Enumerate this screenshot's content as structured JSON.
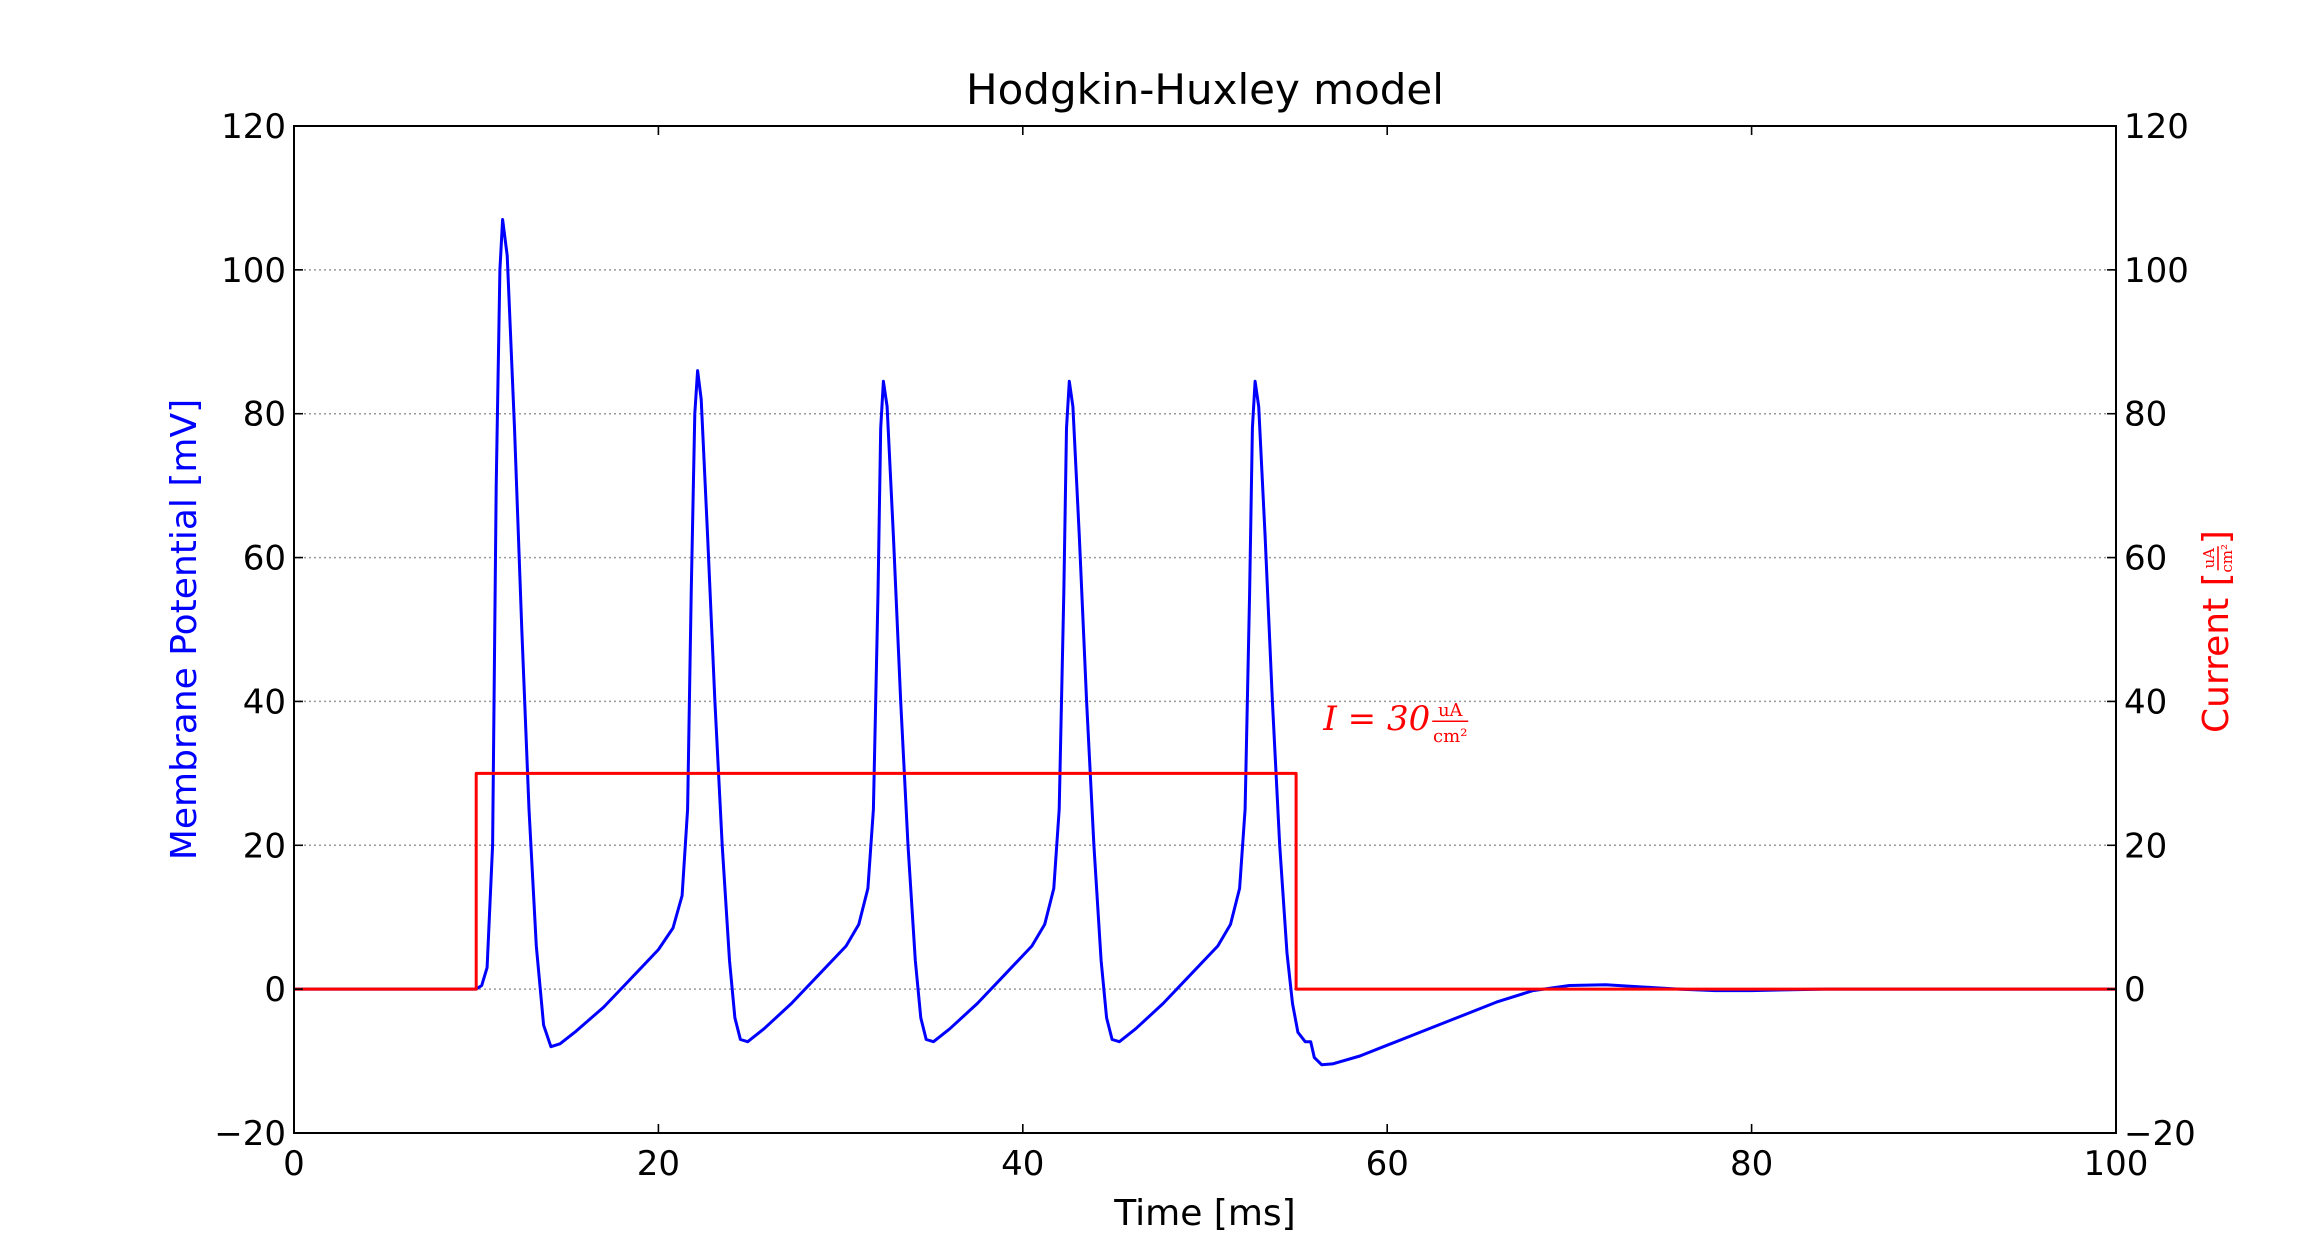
{
  "chart_data": {
    "type": "line",
    "title": "Hodgkin-Huxley model",
    "xlabel": "Time [ms]",
    "ylabel_left": "Membrane Potential [mV]",
    "ylabel_right_prefix": "Current [",
    "ylabel_right_frac_num": "uA",
    "ylabel_right_frac_den": "cm²",
    "ylabel_right_suffix": "]",
    "annotation": {
      "text_prefix": "I = 30",
      "frac_num": "uA",
      "frac_den": "cm²",
      "x": 56.5,
      "y": 36,
      "color": "#ff0000"
    },
    "xlim": [
      0,
      100
    ],
    "ylim": [
      -20,
      120
    ],
    "xticks": [
      0,
      20,
      40,
      60,
      80,
      100
    ],
    "yticks": [
      -20,
      0,
      20,
      40,
      60,
      80,
      100,
      120
    ],
    "grid": "horizontal dotted",
    "colors": {
      "membrane": "#0000ff",
      "current": "#ff0000",
      "left_label": "#0000ff",
      "right_label": "#ff0000"
    },
    "series": [
      {
        "color": "#0000ff",
        "points": [
          [
            0,
            0
          ],
          [
            10,
            0
          ],
          [
            10.3,
            0.5
          ],
          [
            10.6,
            3
          ],
          [
            10.9,
            20
          ],
          [
            11.1,
            70
          ],
          [
            11.3,
            100
          ],
          [
            11.45,
            107
          ],
          [
            11.7,
            102
          ],
          [
            12.1,
            78
          ],
          [
            12.5,
            50
          ],
          [
            12.9,
            25
          ],
          [
            13.3,
            6
          ],
          [
            13.7,
            -5
          ],
          [
            14.1,
            -8
          ],
          [
            14.6,
            -7.6
          ],
          [
            15.5,
            -5.8
          ],
          [
            17,
            -2.5
          ],
          [
            18.5,
            1.5
          ],
          [
            20,
            5.5
          ],
          [
            20.8,
            8.5
          ],
          [
            21.3,
            13
          ],
          [
            21.6,
            25
          ],
          [
            21.8,
            55
          ],
          [
            22,
            80
          ],
          [
            22.15,
            86
          ],
          [
            22.35,
            82
          ],
          [
            22.7,
            63
          ],
          [
            23.1,
            40
          ],
          [
            23.5,
            20
          ],
          [
            23.9,
            4
          ],
          [
            24.2,
            -4
          ],
          [
            24.5,
            -7
          ],
          [
            24.9,
            -7.3
          ],
          [
            25.8,
            -5.5
          ],
          [
            27.3,
            -2
          ],
          [
            28.8,
            2
          ],
          [
            30.3,
            6
          ],
          [
            31,
            9
          ],
          [
            31.5,
            14
          ],
          [
            31.8,
            25
          ],
          [
            32.05,
            55
          ],
          [
            32.2,
            78
          ],
          [
            32.35,
            84.5
          ],
          [
            32.55,
            81
          ],
          [
            32.9,
            63
          ],
          [
            33.3,
            40
          ],
          [
            33.7,
            20
          ],
          [
            34.1,
            4
          ],
          [
            34.4,
            -4
          ],
          [
            34.7,
            -7
          ],
          [
            35.1,
            -7.3
          ],
          [
            36,
            -5.5
          ],
          [
            37.5,
            -2
          ],
          [
            39,
            2
          ],
          [
            40.5,
            6
          ],
          [
            41.2,
            9
          ],
          [
            41.7,
            14
          ],
          [
            42,
            25
          ],
          [
            42.25,
            55
          ],
          [
            42.4,
            78
          ],
          [
            42.55,
            84.5
          ],
          [
            42.75,
            81
          ],
          [
            43.1,
            63
          ],
          [
            43.5,
            40
          ],
          [
            43.9,
            20
          ],
          [
            44.3,
            4
          ],
          [
            44.6,
            -4
          ],
          [
            44.9,
            -7
          ],
          [
            45.3,
            -7.3
          ],
          [
            46.2,
            -5.5
          ],
          [
            47.7,
            -2
          ],
          [
            49.2,
            2
          ],
          [
            50.7,
            6
          ],
          [
            51.4,
            9
          ],
          [
            51.9,
            14
          ],
          [
            52.2,
            25
          ],
          [
            52.45,
            55
          ],
          [
            52.6,
            78
          ],
          [
            52.75,
            84.5
          ],
          [
            52.95,
            81
          ],
          [
            53.3,
            63
          ],
          [
            53.7,
            40
          ],
          [
            54.1,
            20
          ],
          [
            54.5,
            5
          ],
          [
            54.8,
            -2
          ],
          [
            55.1,
            -6
          ],
          [
            55.5,
            -7.3
          ],
          [
            55.8,
            -7.3
          ],
          [
            56,
            -9.5
          ],
          [
            56.4,
            -10.5
          ],
          [
            57,
            -10.4
          ],
          [
            58.5,
            -9.3
          ],
          [
            60,
            -7.8
          ],
          [
            62,
            -5.8
          ],
          [
            64,
            -3.8
          ],
          [
            66,
            -1.8
          ],
          [
            68,
            -0.2
          ],
          [
            70,
            0.5
          ],
          [
            72,
            0.6
          ],
          [
            74,
            0.3
          ],
          [
            76,
            0
          ],
          [
            78,
            -0.2
          ],
          [
            80,
            -0.2
          ],
          [
            84,
            0
          ],
          [
            90,
            0
          ],
          [
            100,
            0
          ]
        ]
      },
      {
        "color": "#ff0000",
        "points": [
          [
            0,
            0
          ],
          [
            10,
            0
          ],
          [
            10,
            30
          ],
          [
            55,
            30
          ],
          [
            55,
            0
          ],
          [
            100,
            0
          ]
        ]
      }
    ]
  }
}
